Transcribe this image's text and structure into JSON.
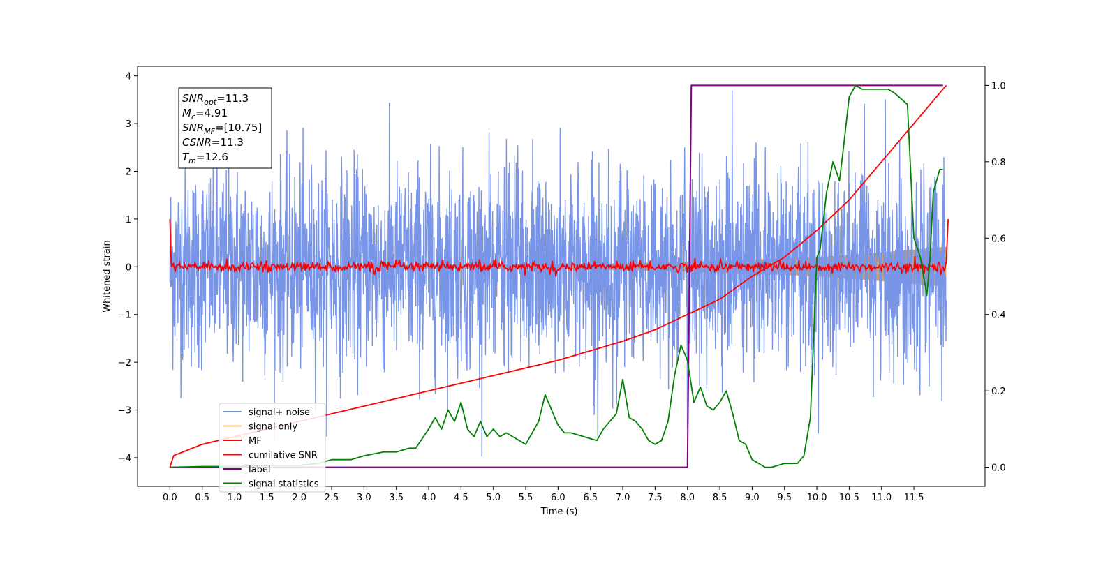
{
  "chart_data": {
    "type": "line",
    "xlabel": "Time (s)",
    "ylabel": "Whitened strain",
    "xlim": [
      -0.5,
      12.6
    ],
    "ylim": [
      -4.6,
      4.2
    ],
    "y2lim": [
      -0.05,
      1.05
    ],
    "x_ticks": [
      "0.0",
      "0.5",
      "1.0",
      "1.5",
      "2.0",
      "2.5",
      "3.0",
      "3.5",
      "4.0",
      "4.5",
      "5.0",
      "5.5",
      "6.0",
      "6.5",
      "7.0",
      "7.5",
      "8.0",
      "8.5",
      "9.0",
      "9.5",
      "10.0",
      "10.5",
      "11.0",
      "11.5"
    ],
    "y_ticks": [
      "4",
      "3",
      "2",
      "1",
      "0",
      "−1",
      "−2",
      "−3",
      "−4"
    ],
    "y2_ticks": [
      "1.0",
      "0.8",
      "0.6",
      "0.4",
      "0.2",
      "0.0"
    ],
    "info_box": [
      "SNR_opt=11.3",
      "M_c=4.91",
      "SNR_MF=[10.75]",
      "CSNR=11.3",
      "T_m=12.6"
    ],
    "legend_position": "lower-left",
    "series": [
      {
        "name": "signal+ noise",
        "color": "#7895e8",
        "axis": "left",
        "description_range": [
          -4.1,
          3.85
        ]
      },
      {
        "name": "signal only",
        "color": "#ffc87a",
        "axis": "left",
        "amplitude_envelope": {
          "x": [
            0,
            6,
            8,
            10,
            11,
            12
          ],
          "y": [
            0.02,
            0.05,
            0.1,
            0.2,
            0.3,
            0.42
          ]
        }
      },
      {
        "name": "MF",
        "color": "#ff0000",
        "axis": "left",
        "x": [
          0,
          0.02,
          0.05,
          12,
          12.03
        ],
        "y": [
          1.0,
          0.1,
          0.0,
          0.0,
          1.0
        ]
      },
      {
        "name": "cumilative SNR",
        "color": "#ff0000",
        "axis": "right",
        "x": [
          0,
          0.05,
          0.5,
          1,
          2,
          3,
          4,
          5,
          6,
          7,
          7.5,
          8,
          8.5,
          9,
          9.5,
          10,
          10.5,
          11,
          11.5,
          11.8,
          12
        ],
        "y": [
          0.0,
          0.03,
          0.06,
          0.08,
          0.12,
          0.16,
          0.2,
          0.24,
          0.28,
          0.33,
          0.36,
          0.4,
          0.44,
          0.5,
          0.55,
          0.62,
          0.7,
          0.8,
          0.9,
          0.96,
          1.0
        ]
      },
      {
        "name": "label",
        "color": "#800080",
        "axis": "right",
        "x": [
          0,
          8.0,
          8.06,
          11.95
        ],
        "y": [
          0.0,
          0.0,
          1.0,
          1.0
        ]
      },
      {
        "name": "signal statistics",
        "color": "#008000",
        "axis": "right",
        "x": [
          0,
          0.5,
          1,
          1.5,
          2,
          2.3,
          2.5,
          2.8,
          3,
          3.3,
          3.5,
          3.7,
          3.8,
          4,
          4.1,
          4.2,
          4.3,
          4.4,
          4.5,
          4.6,
          4.7,
          4.8,
          4.9,
          5,
          5.1,
          5.2,
          5.3,
          5.5,
          5.7,
          5.8,
          5.9,
          6,
          6.1,
          6.2,
          6.4,
          6.6,
          6.7,
          6.8,
          6.9,
          7,
          7.1,
          7.2,
          7.3,
          7.4,
          7.5,
          7.6,
          7.7,
          7.8,
          7.9,
          8,
          8.1,
          8.2,
          8.3,
          8.4,
          8.5,
          8.6,
          8.7,
          8.8,
          8.9,
          9,
          9.1,
          9.2,
          9.3,
          9.5,
          9.7,
          9.8,
          9.9,
          10,
          10.05,
          10.15,
          10.25,
          10.35,
          10.4,
          10.5,
          10.6,
          10.7,
          10.8,
          11,
          11.1,
          11.2,
          11.4,
          11.5,
          11.6,
          11.7,
          11.75,
          11.8,
          11.9,
          11.95
        ],
        "y": [
          0.0,
          0.002,
          0.002,
          0.005,
          0.005,
          0.01,
          0.02,
          0.02,
          0.03,
          0.04,
          0.04,
          0.05,
          0.05,
          0.1,
          0.13,
          0.1,
          0.15,
          0.12,
          0.17,
          0.1,
          0.08,
          0.12,
          0.08,
          0.1,
          0.08,
          0.09,
          0.08,
          0.06,
          0.12,
          0.19,
          0.15,
          0.11,
          0.09,
          0.09,
          0.08,
          0.07,
          0.1,
          0.12,
          0.14,
          0.23,
          0.13,
          0.12,
          0.1,
          0.07,
          0.06,
          0.07,
          0.12,
          0.24,
          0.32,
          0.28,
          0.17,
          0.21,
          0.16,
          0.15,
          0.17,
          0.2,
          0.14,
          0.07,
          0.06,
          0.02,
          0.01,
          0.0,
          0.0,
          0.01,
          0.01,
          0.03,
          0.13,
          0.55,
          0.57,
          0.72,
          0.8,
          0.75,
          0.82,
          0.97,
          1.0,
          0.99,
          0.99,
          0.99,
          0.99,
          0.98,
          0.95,
          0.6,
          0.55,
          0.45,
          0.55,
          0.72,
          0.78,
          0.78
        ]
      }
    ]
  }
}
